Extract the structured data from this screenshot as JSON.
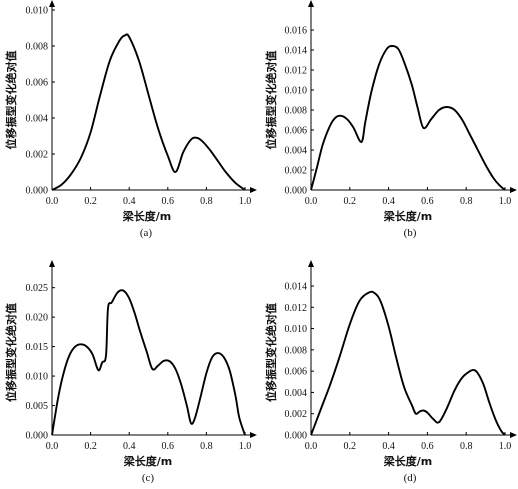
{
  "chart_data": [
    {
      "type": "line",
      "caption": "(a)",
      "xlabel": "梁长度/m",
      "ylabel": "位移振型变化绝对值",
      "xlim": [
        0,
        1
      ],
      "ylim": [
        0,
        0.01
      ],
      "xticks": [
        "0.0",
        "0.2",
        "0.4",
        "0.6",
        "0.8",
        "1.0"
      ],
      "yticks": [
        "0.000",
        "0.002",
        "0.004",
        "0.006",
        "0.008",
        "0.010"
      ],
      "grid": false,
      "x": [
        0,
        0.05,
        0.1,
        0.15,
        0.2,
        0.25,
        0.3,
        0.35,
        0.38,
        0.4,
        0.45,
        0.5,
        0.55,
        0.6,
        0.64,
        0.68,
        0.72,
        0.75,
        0.78,
        0.82,
        0.86,
        0.9,
        0.95,
        1.0
      ],
      "y": [
        0,
        0.0003,
        0.0009,
        0.0018,
        0.0032,
        0.0053,
        0.0072,
        0.0083,
        0.0086,
        0.0085,
        0.0072,
        0.0053,
        0.0034,
        0.0019,
        0.001,
        0.0021,
        0.0028,
        0.0029,
        0.0027,
        0.0022,
        0.0016,
        0.001,
        0.0004,
        0
      ]
    },
    {
      "type": "line",
      "caption": "(b)",
      "xlabel": "梁长度/m",
      "ylabel": "位移振型变化绝对值",
      "xlim": [
        0,
        1
      ],
      "ylim": [
        0,
        0.018
      ],
      "xticks": [
        "0.0",
        "0.2",
        "0.4",
        "0.6",
        "0.8",
        "1.0"
      ],
      "yticks": [
        "0.000",
        "0.002",
        "0.004",
        "0.006",
        "0.008",
        "0.010",
        "0.012",
        "0.014",
        "0.016"
      ],
      "grid": false,
      "x": [
        0,
        0.03,
        0.06,
        0.1,
        0.13,
        0.16,
        0.19,
        0.22,
        0.26,
        0.28,
        0.31,
        0.35,
        0.39,
        0.42,
        0.45,
        0.48,
        0.52,
        0.55,
        0.58,
        0.62,
        0.66,
        0.7,
        0.74,
        0.78,
        0.82,
        0.86,
        0.9,
        0.94,
        0.97,
        1.0
      ],
      "y": [
        0,
        0.0022,
        0.0045,
        0.0065,
        0.0073,
        0.0074,
        0.007,
        0.0062,
        0.0048,
        0.0068,
        0.0097,
        0.0125,
        0.0141,
        0.0144,
        0.0141,
        0.0128,
        0.0105,
        0.0082,
        0.0062,
        0.0071,
        0.008,
        0.0083,
        0.008,
        0.007,
        0.0055,
        0.004,
        0.0025,
        0.0012,
        0.0005,
        0
      ]
    },
    {
      "type": "line",
      "caption": "(c)",
      "xlabel": "梁长度/m",
      "ylabel": "位移振型变化绝对值",
      "xlim": [
        0,
        1
      ],
      "ylim": [
        0,
        0.028
      ],
      "xticks": [
        "0.0",
        "0.2",
        "0.4",
        "0.6",
        "0.8",
        "1.0"
      ],
      "yticks": [
        "0.000",
        "0.005",
        "0.010",
        "0.015",
        "0.020",
        "0.025"
      ],
      "grid": false,
      "x": [
        0,
        0.03,
        0.06,
        0.09,
        0.12,
        0.15,
        0.18,
        0.21,
        0.24,
        0.26,
        0.28,
        0.29,
        0.31,
        0.34,
        0.37,
        0.4,
        0.43,
        0.46,
        0.49,
        0.52,
        0.55,
        0.58,
        0.61,
        0.64,
        0.67,
        0.7,
        0.72,
        0.74,
        0.77,
        0.8,
        0.83,
        0.86,
        0.89,
        0.92,
        0.95,
        0.97,
        1.0
      ],
      "y": [
        0,
        0.006,
        0.0105,
        0.0135,
        0.015,
        0.0154,
        0.015,
        0.0137,
        0.011,
        0.0123,
        0.0135,
        0.0215,
        0.0225,
        0.0242,
        0.0245,
        0.0232,
        0.0205,
        0.0172,
        0.0142,
        0.0112,
        0.0118,
        0.0126,
        0.0125,
        0.0112,
        0.0085,
        0.0048,
        0.002,
        0.0028,
        0.0065,
        0.0105,
        0.0132,
        0.0139,
        0.0132,
        0.011,
        0.0068,
        0.003,
        0
      ]
    },
    {
      "type": "line",
      "caption": "(d)",
      "xlabel": "梁长度/m",
      "ylabel": "位移振型变化绝对值",
      "xlim": [
        0,
        1
      ],
      "ylim": [
        0,
        0.0155
      ],
      "xticks": [
        "0.0",
        "0.2",
        "0.4",
        "0.6",
        "0.8",
        "1.0"
      ],
      "yticks": [
        "0.000",
        "0.002",
        "0.004",
        "0.006",
        "0.008",
        "0.010",
        "0.012",
        "0.014"
      ],
      "grid": false,
      "x": [
        0,
        0.05,
        0.1,
        0.15,
        0.2,
        0.25,
        0.3,
        0.33,
        0.36,
        0.4,
        0.44,
        0.48,
        0.52,
        0.54,
        0.56,
        0.58,
        0.6,
        0.63,
        0.66,
        0.7,
        0.74,
        0.78,
        0.82,
        0.84,
        0.86,
        0.89,
        0.92,
        0.95,
        0.98,
        1.0
      ],
      "y": [
        0,
        0.0024,
        0.0048,
        0.0075,
        0.0104,
        0.0126,
        0.0134,
        0.0133,
        0.0125,
        0.0102,
        0.0072,
        0.0045,
        0.0028,
        0.002,
        0.0022,
        0.0023,
        0.0021,
        0.0015,
        0.0012,
        0.0025,
        0.0042,
        0.0054,
        0.006,
        0.0061,
        0.0058,
        0.0047,
        0.003,
        0.0015,
        0.0004,
        0
      ]
    }
  ]
}
